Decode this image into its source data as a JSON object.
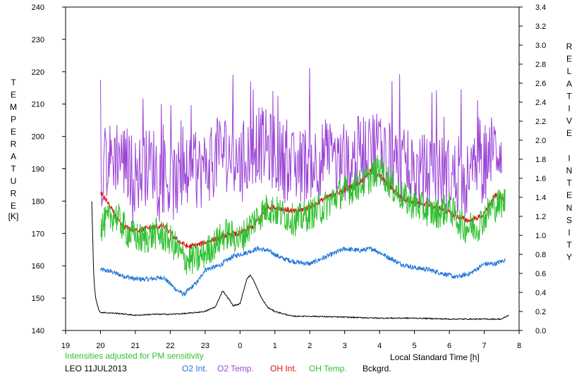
{
  "chart_data": {
    "type": "line",
    "xlabel": "Local Standard Time [h]",
    "ylabel_left": "TEMPERATURE",
    "ylabel_left_unit": "[K]",
    "ylabel_right": "RELATIVE INTENSITY",
    "note": "Intensities adjusted for PM sensitivity",
    "station_date": "LEO 11JUL2013",
    "xlim": [
      19,
      32
    ],
    "x_ticks": [
      "19",
      "20",
      "21",
      "22",
      "23",
      "0",
      "1",
      "2",
      "3",
      "4",
      "5",
      "6",
      "7",
      "8"
    ],
    "ylim_left": [
      140,
      240
    ],
    "y_left_ticks": [
      "140",
      "150",
      "160",
      "170",
      "180",
      "190",
      "200",
      "210",
      "220",
      "230",
      "240"
    ],
    "ylim_right": [
      0.0,
      3.4
    ],
    "y_right_ticks": [
      "0.0",
      "0.2",
      "0.4",
      "0.6",
      "0.8",
      "1.0",
      "1.2",
      "1.4",
      "1.6",
      "1.8",
      "2.0",
      "2.2",
      "2.4",
      "2.6",
      "2.8",
      "3.0",
      "3.2",
      "3.4"
    ],
    "grid": false,
    "series": [
      {
        "name": "O2 Int.",
        "color": "#1a73d9",
        "axis": "right",
        "x": [
          20.0,
          20.3,
          20.6,
          21.0,
          21.4,
          21.8,
          22.2,
          22.4,
          22.8,
          23.0,
          23.4,
          23.8,
          24.2,
          24.5,
          24.8,
          25.2,
          25.6,
          26.0,
          26.5,
          27.0,
          27.4,
          27.8,
          28.2,
          28.6,
          29.0,
          29.4,
          29.8,
          30.2,
          30.6,
          31.0,
          31.3,
          31.6
        ],
        "y": [
          0.64,
          0.62,
          0.58,
          0.54,
          0.54,
          0.56,
          0.42,
          0.38,
          0.52,
          0.64,
          0.68,
          0.78,
          0.82,
          0.86,
          0.84,
          0.76,
          0.72,
          0.7,
          0.78,
          0.86,
          0.84,
          0.86,
          0.78,
          0.7,
          0.66,
          0.64,
          0.6,
          0.56,
          0.6,
          0.7,
          0.7,
          0.74
        ]
      },
      {
        "name": "O2 Temp.",
        "color": "#9b44d6",
        "axis": "left",
        "x": [
          20.0,
          20.5,
          21.0,
          21.5,
          22.0,
          22.5,
          23.0,
          23.5,
          24.0,
          24.5,
          25.0,
          25.5,
          26.0,
          26.5,
          27.0,
          27.5,
          28.0,
          28.5,
          29.0,
          29.5,
          30.0,
          30.5,
          31.0,
          31.5
        ],
        "y": [
          190,
          195,
          188,
          192,
          185,
          188,
          190,
          196,
          192,
          198,
          195,
          190,
          192,
          194,
          190,
          196,
          198,
          192,
          188,
          190,
          188,
          186,
          192,
          198
        ]
      },
      {
        "name": "OH Int.",
        "color": "#e01010",
        "axis": "right",
        "x": [
          20.0,
          20.2,
          20.4,
          20.6,
          21.0,
          21.4,
          21.8,
          22.2,
          22.5,
          22.8,
          23.2,
          23.6,
          24.0,
          24.4,
          24.8,
          25.2,
          25.6,
          26.0,
          26.5,
          27.0,
          27.4,
          27.8,
          28.2,
          28.6,
          29.0,
          29.4,
          29.8,
          30.2,
          30.6,
          31.0,
          31.3,
          31.6
        ],
        "y": [
          1.45,
          1.35,
          1.22,
          1.1,
          1.05,
          1.08,
          1.1,
          0.95,
          0.88,
          0.9,
          0.95,
          1.0,
          1.02,
          1.1,
          1.3,
          1.28,
          1.25,
          1.3,
          1.4,
          1.48,
          1.55,
          1.7,
          1.55,
          1.4,
          1.35,
          1.32,
          1.28,
          1.2,
          1.15,
          1.22,
          1.42,
          1.38
        ]
      },
      {
        "name": "OH Temp.",
        "color": "#30c030",
        "axis": "left",
        "x": [
          20.0,
          20.4,
          20.8,
          21.2,
          21.6,
          22.0,
          22.4,
          22.8,
          23.2,
          23.6,
          24.0,
          24.4,
          24.8,
          25.2,
          25.6,
          26.0,
          26.4,
          26.8,
          27.2,
          27.6,
          28.0,
          28.4,
          28.8,
          29.2,
          29.6,
          30.0,
          30.4,
          30.8,
          31.2,
          31.6
        ],
        "y": [
          172,
          176,
          170,
          168,
          170,
          168,
          162,
          162,
          166,
          170,
          168,
          174,
          178,
          176,
          174,
          176,
          178,
          182,
          184,
          186,
          190,
          184,
          180,
          178,
          176,
          178,
          172,
          172,
          178,
          180
        ]
      },
      {
        "name": "Bckgrd.",
        "color": "#000000",
        "axis": "right",
        "x": [
          19.75,
          19.78,
          19.8,
          19.83,
          19.86,
          19.9,
          19.95,
          20.0,
          20.5,
          21.0,
          21.5,
          22.0,
          22.5,
          23.0,
          23.3,
          23.5,
          23.7,
          23.8,
          24.0,
          24.2,
          24.3,
          24.4,
          24.6,
          24.8,
          25.0,
          25.5,
          26.0,
          27.0,
          28.0,
          29.0,
          30.0,
          31.0,
          31.5,
          31.7
        ],
        "y": [
          1.36,
          0.95,
          0.65,
          0.45,
          0.35,
          0.28,
          0.22,
          0.19,
          0.18,
          0.16,
          0.17,
          0.17,
          0.18,
          0.2,
          0.25,
          0.42,
          0.32,
          0.26,
          0.28,
          0.55,
          0.58,
          0.52,
          0.35,
          0.24,
          0.2,
          0.15,
          0.15,
          0.14,
          0.13,
          0.13,
          0.12,
          0.12,
          0.12,
          0.16
        ]
      }
    ]
  }
}
